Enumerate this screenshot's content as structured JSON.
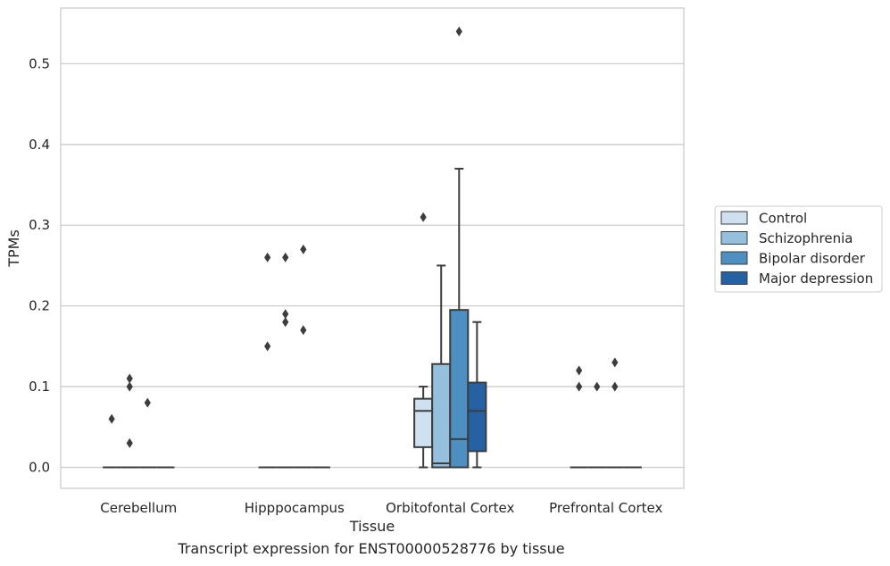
{
  "caption": "Transcript expression for ENST00000528776 by tissue",
  "chart_data": {
    "type": "box",
    "xlabel": "Tissue",
    "ylabel": "TPMs",
    "ylim": [
      -0.026,
      0.569
    ],
    "yticks": [
      "0.0",
      "0.1",
      "0.2",
      "0.3",
      "0.4",
      "0.5"
    ],
    "grid": "horizontal",
    "legend_position": "right",
    "categories": [
      "Cerebellum",
      "Hipppocampus",
      "Orbitofontal Cortex",
      "Prefrontal Cortex"
    ],
    "series": [
      {
        "name": "Control",
        "color": "#cfe0f1",
        "boxes": [
          {
            "q1": 0,
            "median": 0,
            "q3": 0,
            "whisker_low": 0,
            "whisker_high": 0,
            "outliers": [
              0.06
            ]
          },
          {
            "q1": 0,
            "median": 0,
            "q3": 0,
            "whisker_low": 0,
            "whisker_high": 0,
            "outliers": [
              0.15,
              0.26
            ]
          },
          {
            "q1": 0.025,
            "median": 0.07,
            "q3": 0.085,
            "whisker_low": 0,
            "whisker_high": 0.1,
            "outliers": [
              0.31
            ]
          },
          {
            "q1": 0,
            "median": 0,
            "q3": 0,
            "whisker_low": 0,
            "whisker_high": 0,
            "outliers": [
              0.1,
              0.12
            ]
          }
        ]
      },
      {
        "name": "Schizophrenia",
        "color": "#95c0dd",
        "boxes": [
          {
            "q1": 0,
            "median": 0,
            "q3": 0,
            "whisker_low": 0,
            "whisker_high": 0,
            "outliers": [
              0.03,
              0.1,
              0.11
            ]
          },
          {
            "q1": 0,
            "median": 0,
            "q3": 0,
            "whisker_low": 0,
            "whisker_high": 0,
            "outliers": [
              0.18,
              0.19,
              0.26
            ]
          },
          {
            "q1": 0,
            "median": 0.005,
            "q3": 0.128,
            "whisker_low": 0,
            "whisker_high": 0.25,
            "outliers": []
          },
          {
            "q1": 0,
            "median": 0,
            "q3": 0,
            "whisker_low": 0,
            "whisker_high": 0,
            "outliers": [
              0.1
            ]
          }
        ]
      },
      {
        "name": "Bipolar disorder",
        "color": "#4d8fc1",
        "boxes": [
          {
            "q1": 0,
            "median": 0,
            "q3": 0,
            "whisker_low": 0,
            "whisker_high": 0,
            "outliers": [
              0.08
            ]
          },
          {
            "q1": 0,
            "median": 0,
            "q3": 0,
            "whisker_low": 0,
            "whisker_high": 0,
            "outliers": [
              0.17,
              0.27
            ]
          },
          {
            "q1": 0,
            "median": 0.035,
            "q3": 0.195,
            "whisker_low": 0,
            "whisker_high": 0.37,
            "outliers": [
              0.54
            ]
          },
          {
            "q1": 0,
            "median": 0,
            "q3": 0,
            "whisker_low": 0,
            "whisker_high": 0,
            "outliers": [
              0.1,
              0.13
            ]
          }
        ]
      },
      {
        "name": "Major depression",
        "color": "#2562a3",
        "boxes": [
          {
            "q1": 0,
            "median": 0,
            "q3": 0,
            "whisker_low": 0,
            "whisker_high": 0,
            "outliers": []
          },
          {
            "q1": 0,
            "median": 0,
            "q3": 0,
            "whisker_low": 0,
            "whisker_high": 0,
            "outliers": []
          },
          {
            "q1": 0.02,
            "median": 0.07,
            "q3": 0.105,
            "whisker_low": 0,
            "whisker_high": 0.18,
            "outliers": []
          },
          {
            "q1": 0,
            "median": 0,
            "q3": 0,
            "whisker_low": 0,
            "whisker_high": 0,
            "outliers": []
          }
        ]
      }
    ]
  }
}
